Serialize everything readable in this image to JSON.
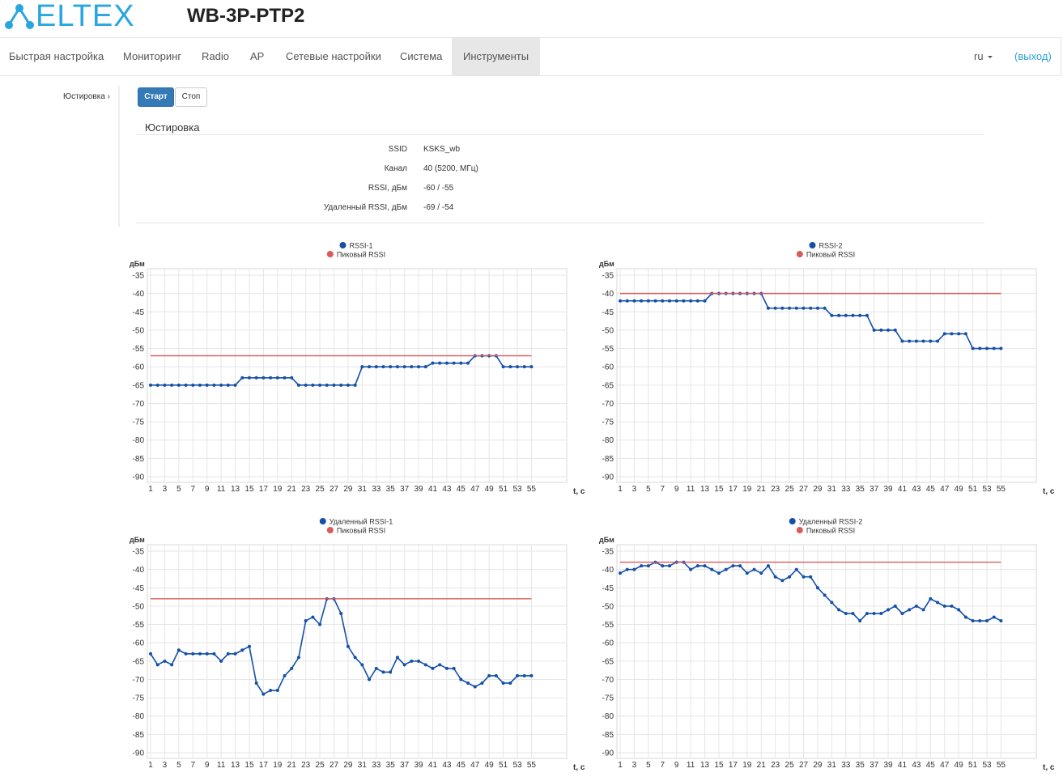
{
  "header": {
    "logo": "ELTEX",
    "title": "WB-3P-PTP2"
  },
  "nav": {
    "items": [
      "Быстрая настройка",
      "Мониторинг",
      "Radio",
      "AP",
      "Сетевые настройки",
      "Система",
      "Инструменты"
    ],
    "lang": "ru",
    "logout": "(выход)"
  },
  "sidebar": {
    "item": "Юстировка ›"
  },
  "buttons": [
    "Старт",
    "Стоп"
  ],
  "section": {
    "title": "Юстировка",
    "rows": [
      [
        "SSID",
        "KSKS_wb"
      ],
      [
        "Канал",
        "40 (5200, МГц)"
      ],
      [
        "RSSI, дБм",
        "-60 / -55"
      ],
      [
        "Удаленный RSSI, дБм",
        "-69 / -54"
      ]
    ]
  },
  "chart_data": [
    {
      "type": "line",
      "y_label": "дБм",
      "x_label": "t, с",
      "x": [
        1,
        2,
        3,
        4,
        5,
        6,
        7,
        8,
        9,
        10,
        11,
        12,
        13,
        14,
        15,
        16,
        17,
        18,
        19,
        20,
        21,
        22,
        23,
        24,
        25,
        26,
        27,
        28,
        29,
        30,
        31,
        32,
        33,
        34,
        35,
        36,
        37,
        38,
        39,
        40,
        41,
        42,
        43,
        44,
        45,
        46,
        47,
        48,
        49,
        50,
        51,
        52,
        53,
        54,
        55
      ],
      "series": [
        {
          "name": "RSSI-1",
          "color": "#1450a8",
          "markers": true,
          "values": [
            -65,
            -65,
            -65,
            -65,
            -65,
            -65,
            -65,
            -65,
            -65,
            -65,
            -65,
            -65,
            -65,
            -63,
            -63,
            -63,
            -63,
            -63,
            -63,
            -63,
            -63,
            -65,
            -65,
            -65,
            -65,
            -65,
            -65,
            -65,
            -65,
            -65,
            -60,
            -60,
            -60,
            -60,
            -60,
            -60,
            -60,
            -60,
            -60,
            -60,
            -59,
            -59,
            -59,
            -59,
            -59,
            -59,
            -57,
            -57,
            -57,
            -57,
            -60,
            -60,
            -60,
            -60,
            -60
          ]
        },
        {
          "name": "Пиковый RSSI",
          "color": "#dc5a5a",
          "markers": false,
          "values": [
            -57,
            -57,
            -57,
            -57,
            -57,
            -57,
            -57,
            -57,
            -57,
            -57,
            -57,
            -57,
            -57,
            -57,
            -57,
            -57,
            -57,
            -57,
            -57,
            -57,
            -57,
            -57,
            -57,
            -57,
            -57,
            -57,
            -57,
            -57,
            -57,
            -57,
            -57,
            -57,
            -57,
            -57,
            -57,
            -57,
            -57,
            -57,
            -57,
            -57,
            -57,
            -57,
            -57,
            -57,
            -57,
            -57,
            -57,
            -57,
            -57,
            -57,
            -57,
            -57,
            -57,
            -57,
            -57
          ]
        }
      ],
      "xlim": [
        1,
        60
      ],
      "xticks": [
        1,
        3,
        5,
        7,
        9,
        11,
        13,
        15,
        17,
        19,
        21,
        23,
        25,
        27,
        29,
        31,
        33,
        35,
        37,
        39,
        41,
        43,
        45,
        47,
        49,
        51,
        53,
        55
      ],
      "ylim": [
        -90,
        -35
      ],
      "yticks": [
        -35,
        -40,
        -45,
        -50,
        -55,
        -60,
        -65,
        -70,
        -75,
        -80,
        -85,
        -90
      ],
      "grid": true
    },
    {
      "type": "line",
      "y_label": "дБм",
      "x_label": "t, с",
      "x": [
        1,
        2,
        3,
        4,
        5,
        6,
        7,
        8,
        9,
        10,
        11,
        12,
        13,
        14,
        15,
        16,
        17,
        18,
        19,
        20,
        21,
        22,
        23,
        24,
        25,
        26,
        27,
        28,
        29,
        30,
        31,
        32,
        33,
        34,
        35,
        36,
        37,
        38,
        39,
        40,
        41,
        42,
        43,
        44,
        45,
        46,
        47,
        48,
        49,
        50,
        51,
        52,
        53,
        54,
        55
      ],
      "series": [
        {
          "name": "RSSI-2",
          "color": "#1450a8",
          "markers": true,
          "values": [
            -42,
            -42,
            -42,
            -42,
            -42,
            -42,
            -42,
            -42,
            -42,
            -42,
            -42,
            -42,
            -42,
            -40,
            -40,
            -40,
            -40,
            -40,
            -40,
            -40,
            -40,
            -44,
            -44,
            -44,
            -44,
            -44,
            -44,
            -44,
            -44,
            -44,
            -46,
            -46,
            -46,
            -46,
            -46,
            -46,
            -50,
            -50,
            -50,
            -50,
            -53,
            -53,
            -53,
            -53,
            -53,
            -53,
            -51,
            -51,
            -51,
            -51,
            -55,
            -55,
            -55,
            -55,
            -55
          ]
        },
        {
          "name": "Пиковый RSSI",
          "color": "#dc5a5a",
          "markers": false,
          "values": [
            -40,
            -40,
            -40,
            -40,
            -40,
            -40,
            -40,
            -40,
            -40,
            -40,
            -40,
            -40,
            -40,
            -40,
            -40,
            -40,
            -40,
            -40,
            -40,
            -40,
            -40,
            -40,
            -40,
            -40,
            -40,
            -40,
            -40,
            -40,
            -40,
            -40,
            -40,
            -40,
            -40,
            -40,
            -40,
            -40,
            -40,
            -40,
            -40,
            -40,
            -40,
            -40,
            -40,
            -40,
            -40,
            -40,
            -40,
            -40,
            -40,
            -40,
            -40,
            -40,
            -40,
            -40,
            -40
          ]
        }
      ],
      "xlim": [
        1,
        60
      ],
      "xticks": [
        1,
        3,
        5,
        7,
        9,
        11,
        13,
        15,
        17,
        19,
        21,
        23,
        25,
        27,
        29,
        31,
        33,
        35,
        37,
        39,
        41,
        43,
        45,
        47,
        49,
        51,
        53,
        55
      ],
      "ylim": [
        -90,
        -35
      ],
      "yticks": [
        -35,
        -40,
        -45,
        -50,
        -55,
        -60,
        -65,
        -70,
        -75,
        -80,
        -85,
        -90
      ],
      "grid": true
    },
    {
      "type": "line",
      "y_label": "дБм",
      "x_label": "t, с",
      "x": [
        1,
        2,
        3,
        4,
        5,
        6,
        7,
        8,
        9,
        10,
        11,
        12,
        13,
        14,
        15,
        16,
        17,
        18,
        19,
        20,
        21,
        22,
        23,
        24,
        25,
        26,
        27,
        28,
        29,
        30,
        31,
        32,
        33,
        34,
        35,
        36,
        37,
        38,
        39,
        40,
        41,
        42,
        43,
        44,
        45,
        46,
        47,
        48,
        49,
        50,
        51,
        52,
        53,
        54,
        55
      ],
      "series": [
        {
          "name": "Удаленный RSSI-1",
          "color": "#1450a8",
          "markers": true,
          "values": [
            -63,
            -66,
            -65,
            -66,
            -62,
            -63,
            -63,
            -63,
            -63,
            -63,
            -65,
            -63,
            -63,
            -62,
            -61,
            -71,
            -74,
            -73,
            -73,
            -69,
            -67,
            -64,
            -54,
            -53,
            -55,
            -48,
            -48,
            -52,
            -61,
            -64,
            -66,
            -70,
            -67,
            -68,
            -68,
            -64,
            -66,
            -65,
            -65,
            -66,
            -67,
            -66,
            -67,
            -67,
            -70,
            -71,
            -72,
            -71,
            -69,
            -69,
            -71,
            -71,
            -69,
            -69,
            -69
          ]
        },
        {
          "name": "Пиковый RSSI",
          "color": "#dc5a5a",
          "markers": false,
          "values": [
            -48,
            -48,
            -48,
            -48,
            -48,
            -48,
            -48,
            -48,
            -48,
            -48,
            -48,
            -48,
            -48,
            -48,
            -48,
            -48,
            -48,
            -48,
            -48,
            -48,
            -48,
            -48,
            -48,
            -48,
            -48,
            -48,
            -48,
            -48,
            -48,
            -48,
            -48,
            -48,
            -48,
            -48,
            -48,
            -48,
            -48,
            -48,
            -48,
            -48,
            -48,
            -48,
            -48,
            -48,
            -48,
            -48,
            -48,
            -48,
            -48,
            -48,
            -48,
            -48,
            -48,
            -48,
            -48
          ]
        }
      ],
      "xlim": [
        1,
        60
      ],
      "xticks": [
        1,
        3,
        5,
        7,
        9,
        11,
        13,
        15,
        17,
        19,
        21,
        23,
        25,
        27,
        29,
        31,
        33,
        35,
        37,
        39,
        41,
        43,
        45,
        47,
        49,
        51,
        53,
        55
      ],
      "ylim": [
        -90,
        -35
      ],
      "yticks": [
        -35,
        -40,
        -45,
        -50,
        -55,
        -60,
        -65,
        -70,
        -75,
        -80,
        -85,
        -90
      ],
      "grid": true
    },
    {
      "type": "line",
      "y_label": "дБм",
      "x_label": "t, с",
      "x": [
        1,
        2,
        3,
        4,
        5,
        6,
        7,
        8,
        9,
        10,
        11,
        12,
        13,
        14,
        15,
        16,
        17,
        18,
        19,
        20,
        21,
        22,
        23,
        24,
        25,
        26,
        27,
        28,
        29,
        30,
        31,
        32,
        33,
        34,
        35,
        36,
        37,
        38,
        39,
        40,
        41,
        42,
        43,
        44,
        45,
        46,
        47,
        48,
        49,
        50,
        51,
        52,
        53,
        54,
        55
      ],
      "series": [
        {
          "name": "Удаленный RSSI-2",
          "color": "#1450a8",
          "markers": true,
          "values": [
            -41,
            -40,
            -40,
            -39,
            -39,
            -38,
            -39,
            -39,
            -38,
            -38,
            -40,
            -39,
            -39,
            -40,
            -41,
            -40,
            -39,
            -39,
            -41,
            -40,
            -41,
            -39,
            -42,
            -43,
            -42,
            -40,
            -42,
            -42,
            -45,
            -47,
            -49,
            -51,
            -52,
            -52,
            -54,
            -52,
            -52,
            -52,
            -51,
            -50,
            -52,
            -51,
            -50,
            -51,
            -48,
            -49,
            -50,
            -50,
            -51,
            -53,
            -54,
            -54,
            -54,
            -53,
            -54
          ]
        },
        {
          "name": "Пиковый RSSI",
          "color": "#dc5a5a",
          "markers": false,
          "values": [
            -38,
            -38,
            -38,
            -38,
            -38,
            -38,
            -38,
            -38,
            -38,
            -38,
            -38,
            -38,
            -38,
            -38,
            -38,
            -38,
            -38,
            -38,
            -38,
            -38,
            -38,
            -38,
            -38,
            -38,
            -38,
            -38,
            -38,
            -38,
            -38,
            -38,
            -38,
            -38,
            -38,
            -38,
            -38,
            -38,
            -38,
            -38,
            -38,
            -38,
            -38,
            -38,
            -38,
            -38,
            -38,
            -38,
            -38,
            -38,
            -38,
            -38,
            -38,
            -38,
            -38,
            -38,
            -38
          ]
        }
      ],
      "xlim": [
        1,
        60
      ],
      "xticks": [
        1,
        3,
        5,
        7,
        9,
        11,
        13,
        15,
        17,
        19,
        21,
        23,
        25,
        27,
        29,
        31,
        33,
        35,
        37,
        39,
        41,
        43,
        45,
        47,
        49,
        51,
        53,
        55
      ],
      "ylim": [
        -90,
        -35
      ],
      "yticks": [
        -35,
        -40,
        -45,
        -50,
        -55,
        -60,
        -65,
        -70,
        -75,
        -80,
        -85,
        -90
      ],
      "grid": true
    }
  ]
}
